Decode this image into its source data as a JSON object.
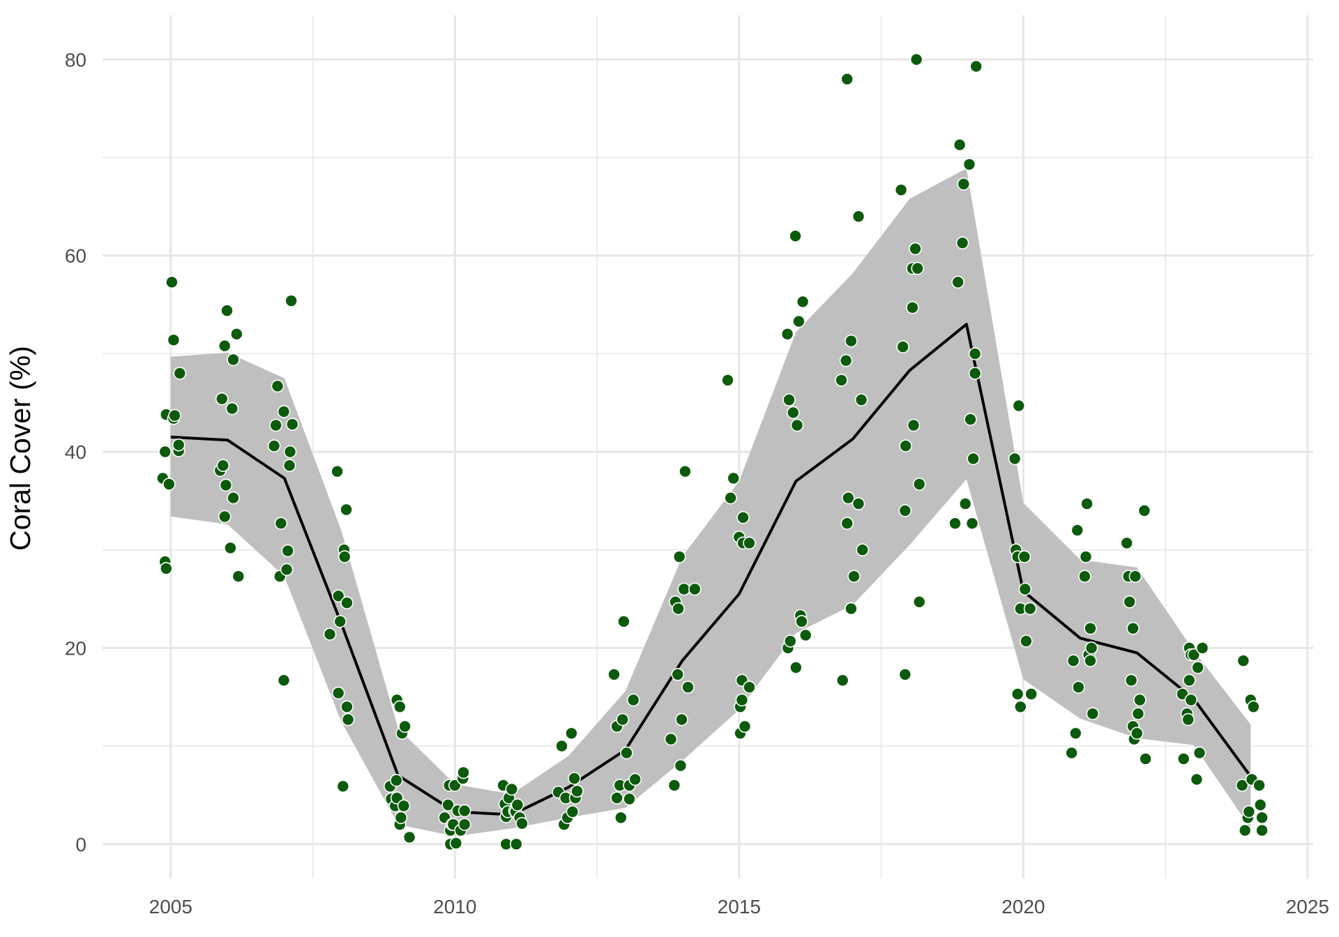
{
  "chart_data": {
    "type": "line",
    "title": "",
    "xlabel": "",
    "ylabel": "Coral Cover (%)",
    "xlim": [
      2003.8,
      2025.1
    ],
    "ylim": [
      -3.5,
      84.5
    ],
    "x_ticks": [
      2005,
      2010,
      2015,
      2020,
      2025
    ],
    "x_tick_labels": [
      "2005",
      "2010",
      "2015",
      "2020",
      "2025"
    ],
    "y_ticks": [
      0,
      20,
      40,
      60,
      80
    ],
    "y_tick_labels": [
      "0",
      "20",
      "40",
      "60",
      "80"
    ],
    "x_minor_ticks": [
      2007.5,
      2012.5,
      2017.5,
      2022.5
    ],
    "y_minor_ticks": [
      10,
      30,
      50,
      70
    ],
    "grid": true,
    "legend": "none",
    "colors": {
      "points": "#0c5a0c",
      "point_edge": "#ffffff",
      "line": "#000000",
      "ribbon": "#bfbfbf",
      "grid": "#e6e6e6"
    },
    "mean_line": {
      "x": [
        2005,
        2006,
        2007,
        2008,
        2009,
        2010,
        2011,
        2012,
        2013,
        2014,
        2015,
        2016,
        2017,
        2018,
        2019,
        2020,
        2021,
        2022,
        2023,
        2024
      ],
      "y": [
        41.5,
        41.2,
        37.3,
        22.5,
        7.0,
        3.3,
        3.0,
        5.8,
        9.6,
        18.7,
        25.5,
        37.0,
        41.3,
        48.3,
        53.0,
        25.8,
        21.0,
        19.5,
        14.8,
        6.9
      ]
    },
    "ribbon": {
      "x": [
        2005,
        2006,
        2007,
        2008,
        2009,
        2010,
        2011,
        2012,
        2013,
        2014,
        2015,
        2016,
        2017,
        2018,
        2019,
        2020,
        2021,
        2022,
        2023,
        2024
      ],
      "upper": [
        49.7,
        50.1,
        47.5,
        32.0,
        11.8,
        6.1,
        5.1,
        9.0,
        15.6,
        29.3,
        37.0,
        52.2,
        58.2,
        65.8,
        68.9,
        34.8,
        29.0,
        28.2,
        19.7,
        12.2
      ],
      "lower": [
        33.4,
        32.6,
        27.3,
        12.5,
        2.0,
        0.8,
        1.6,
        2.7,
        3.7,
        8.5,
        13.7,
        21.5,
        24.4,
        30.5,
        37.2,
        16.8,
        12.8,
        10.8,
        10.1,
        1.6
      ]
    },
    "points": [
      [
        2004.86,
        37.3
      ],
      [
        2004.9,
        40.0
      ],
      [
        2004.92,
        43.8
      ],
      [
        2004.9,
        28.8
      ],
      [
        2004.92,
        28.1
      ],
      [
        2004.97,
        36.7
      ],
      [
        2005.02,
        57.3
      ],
      [
        2005.05,
        43.4
      ],
      [
        2005.07,
        43.7
      ],
      [
        2005.05,
        51.4
      ],
      [
        2005.14,
        40.1
      ],
      [
        2005.14,
        40.7
      ],
      [
        2005.16,
        48.0
      ],
      [
        2005.87,
        38.1
      ],
      [
        2005.9,
        45.4
      ],
      [
        2005.92,
        38.6
      ],
      [
        2005.95,
        50.8
      ],
      [
        2005.95,
        33.4
      ],
      [
        2005.97,
        36.6
      ],
      [
        2005.99,
        54.4
      ],
      [
        2006.05,
        30.2
      ],
      [
        2006.08,
        44.4
      ],
      [
        2006.1,
        35.3
      ],
      [
        2006.1,
        49.4
      ],
      [
        2006.16,
        52.0
      ],
      [
        2006.19,
        27.3
      ],
      [
        2006.82,
        40.6
      ],
      [
        2006.85,
        42.7
      ],
      [
        2006.88,
        46.7
      ],
      [
        2006.92,
        27.3
      ],
      [
        2006.94,
        32.7
      ],
      [
        2006.99,
        44.1
      ],
      [
        2006.99,
        16.7
      ],
      [
        2007.04,
        28.0
      ],
      [
        2007.06,
        29.9
      ],
      [
        2007.09,
        38.6
      ],
      [
        2007.1,
        40.0
      ],
      [
        2007.12,
        55.4
      ],
      [
        2007.14,
        42.8
      ],
      [
        2007.8,
        21.4
      ],
      [
        2007.93,
        38.0
      ],
      [
        2007.95,
        25.3
      ],
      [
        2007.95,
        15.4
      ],
      [
        2007.98,
        22.7
      ],
      [
        2008.03,
        5.9
      ],
      [
        2008.05,
        30.0
      ],
      [
        2008.06,
        29.3
      ],
      [
        2008.09,
        34.1
      ],
      [
        2008.1,
        14.0
      ],
      [
        2008.12,
        12.7
      ],
      [
        2008.1,
        24.6
      ],
      [
        2008.86,
        5.9
      ],
      [
        2008.88,
        4.6
      ],
      [
        2008.95,
        3.9
      ],
      [
        2008.98,
        4.7
      ],
      [
        2008.97,
        6.5
      ],
      [
        2008.98,
        14.7
      ],
      [
        2009.03,
        14.0
      ],
      [
        2009.03,
        2.0
      ],
      [
        2009.05,
        2.7
      ],
      [
        2009.07,
        11.3
      ],
      [
        2009.1,
        3.9
      ],
      [
        2009.12,
        12.0
      ],
      [
        2009.2,
        0.7
      ],
      [
        2009.82,
        2.7
      ],
      [
        2009.88,
        4.0
      ],
      [
        2009.9,
        6.0
      ],
      [
        2009.92,
        1.4
      ],
      [
        2009.92,
        0.0
      ],
      [
        2009.95,
        2.0
      ],
      [
        2009.97,
        2.0
      ],
      [
        2010.0,
        6.0
      ],
      [
        2010.02,
        0.1
      ],
      [
        2010.05,
        3.4
      ],
      [
        2010.1,
        1.4
      ],
      [
        2010.14,
        6.7
      ],
      [
        2010.15,
        7.3
      ],
      [
        2010.17,
        2.0
      ],
      [
        2010.17,
        3.4
      ],
      [
        2010.85,
        6.0
      ],
      [
        2010.88,
        4.1
      ],
      [
        2010.9,
        0.0
      ],
      [
        2010.9,
        2.8
      ],
      [
        2010.93,
        3.3
      ],
      [
        2010.95,
        4.7
      ],
      [
        2011.0,
        5.6
      ],
      [
        2011.05,
        3.4
      ],
      [
        2011.07,
        3.3
      ],
      [
        2011.08,
        0.0
      ],
      [
        2011.1,
        4.0
      ],
      [
        2011.14,
        2.7
      ],
      [
        2011.18,
        2.1
      ],
      [
        2011.82,
        5.3
      ],
      [
        2011.88,
        10.0
      ],
      [
        2011.92,
        2.0
      ],
      [
        2011.95,
        4.7
      ],
      [
        2011.98,
        2.7
      ],
      [
        2012.05,
        11.3
      ],
      [
        2012.07,
        3.3
      ],
      [
        2012.1,
        6.7
      ],
      [
        2012.12,
        4.7
      ],
      [
        2012.15,
        5.4
      ],
      [
        2012.8,
        17.3
      ],
      [
        2012.85,
        4.7
      ],
      [
        2012.85,
        12.0
      ],
      [
        2012.9,
        6.0
      ],
      [
        2012.92,
        2.7
      ],
      [
        2012.95,
        12.7
      ],
      [
        2012.97,
        22.7
      ],
      [
        2013.02,
        9.3
      ],
      [
        2013.07,
        6.0
      ],
      [
        2013.07,
        4.6
      ],
      [
        2013.14,
        14.7
      ],
      [
        2013.17,
        6.6
      ],
      [
        2013.8,
        10.7
      ],
      [
        2013.86,
        6.0
      ],
      [
        2013.88,
        24.7
      ],
      [
        2013.92,
        17.3
      ],
      [
        2013.93,
        24.0
      ],
      [
        2013.95,
        29.3
      ],
      [
        2013.97,
        8.0
      ],
      [
        2013.99,
        12.7
      ],
      [
        2014.03,
        26.0
      ],
      [
        2014.05,
        38.0
      ],
      [
        2014.1,
        16.0
      ],
      [
        2014.22,
        26.0
      ],
      [
        2014.8,
        47.3
      ],
      [
        2014.85,
        35.3
      ],
      [
        2014.9,
        37.3
      ],
      [
        2015.0,
        31.3
      ],
      [
        2015.02,
        14.0
      ],
      [
        2015.02,
        11.3
      ],
      [
        2015.05,
        16.7
      ],
      [
        2015.05,
        14.7
      ],
      [
        2015.07,
        33.3
      ],
      [
        2015.07,
        30.7
      ],
      [
        2015.1,
        12.0
      ],
      [
        2015.18,
        30.7
      ],
      [
        2015.18,
        16.0
      ],
      [
        2015.85,
        52.0
      ],
      [
        2015.86,
        20.0
      ],
      [
        2015.88,
        45.3
      ],
      [
        2015.9,
        20.7
      ],
      [
        2015.95,
        44.0
      ],
      [
        2015.99,
        62.0
      ],
      [
        2016.0,
        18.0
      ],
      [
        2016.02,
        42.7
      ],
      [
        2016.05,
        53.3
      ],
      [
        2016.08,
        23.3
      ],
      [
        2016.1,
        22.7
      ],
      [
        2016.12,
        55.3
      ],
      [
        2016.17,
        21.3
      ],
      [
        2016.8,
        47.3
      ],
      [
        2016.82,
        16.7
      ],
      [
        2016.88,
        49.3
      ],
      [
        2016.9,
        32.7
      ],
      [
        2016.9,
        78.0
      ],
      [
        2016.92,
        35.3
      ],
      [
        2016.97,
        24.0
      ],
      [
        2016.97,
        51.3
      ],
      [
        2017.02,
        27.3
      ],
      [
        2017.1,
        64.0
      ],
      [
        2017.1,
        34.7
      ],
      [
        2017.15,
        45.3
      ],
      [
        2017.17,
        30.0
      ],
      [
        2017.85,
        66.7
      ],
      [
        2017.88,
        50.7
      ],
      [
        2017.92,
        17.3
      ],
      [
        2017.92,
        34.0
      ],
      [
        2017.93,
        40.6
      ],
      [
        2018.05,
        54.7
      ],
      [
        2018.05,
        58.7
      ],
      [
        2018.07,
        42.7
      ],
      [
        2018.1,
        60.7
      ],
      [
        2018.14,
        58.7
      ],
      [
        2018.17,
        24.7
      ],
      [
        2018.17,
        36.7
      ],
      [
        2018.12,
        80.0
      ],
      [
        2018.8,
        32.7
      ],
      [
        2018.85,
        57.3
      ],
      [
        2018.88,
        71.3
      ],
      [
        2018.93,
        61.3
      ],
      [
        2018.95,
        67.3
      ],
      [
        2018.98,
        34.7
      ],
      [
        2019.05,
        69.3
      ],
      [
        2019.07,
        43.3
      ],
      [
        2019.1,
        32.7
      ],
      [
        2019.12,
        39.3
      ],
      [
        2019.15,
        48.0
      ],
      [
        2019.15,
        50.0
      ],
      [
        2019.17,
        79.3
      ],
      [
        2019.85,
        39.3
      ],
      [
        2019.87,
        30.0
      ],
      [
        2019.9,
        15.3
      ],
      [
        2019.9,
        29.3
      ],
      [
        2019.92,
        44.7
      ],
      [
        2019.95,
        24.0
      ],
      [
        2019.95,
        14.0
      ],
      [
        2020.02,
        29.3
      ],
      [
        2020.03,
        26.0
      ],
      [
        2020.05,
        20.7
      ],
      [
        2020.12,
        24.0
      ],
      [
        2020.14,
        15.3
      ],
      [
        2020.85,
        9.3
      ],
      [
        2020.88,
        18.7
      ],
      [
        2020.92,
        11.3
      ],
      [
        2020.95,
        32.0
      ],
      [
        2020.97,
        16.0
      ],
      [
        2021.08,
        27.3
      ],
      [
        2021.1,
        29.3
      ],
      [
        2021.12,
        34.7
      ],
      [
        2021.15,
        19.3
      ],
      [
        2021.18,
        22.0
      ],
      [
        2021.18,
        18.7
      ],
      [
        2021.2,
        20.0
      ],
      [
        2021.22,
        13.3
      ],
      [
        2021.82,
        30.7
      ],
      [
        2021.85,
        27.3
      ],
      [
        2021.87,
        24.7
      ],
      [
        2021.9,
        16.7
      ],
      [
        2021.93,
        12.0
      ],
      [
        2021.93,
        22.0
      ],
      [
        2021.95,
        10.7
      ],
      [
        2021.97,
        27.3
      ],
      [
        2022.0,
        11.3
      ],
      [
        2022.02,
        13.3
      ],
      [
        2022.05,
        14.7
      ],
      [
        2022.13,
        34.0
      ],
      [
        2022.15,
        8.7
      ],
      [
        2022.8,
        15.3
      ],
      [
        2022.82,
        8.7
      ],
      [
        2022.88,
        13.3
      ],
      [
        2022.9,
        12.7
      ],
      [
        2022.92,
        16.7
      ],
      [
        2022.92,
        20.0
      ],
      [
        2022.95,
        19.3
      ],
      [
        2022.95,
        14.7
      ],
      [
        2023.0,
        19.3
      ],
      [
        2023.05,
        6.6
      ],
      [
        2023.07,
        18.0
      ],
      [
        2023.1,
        9.3
      ],
      [
        2023.15,
        20.0
      ],
      [
        2023.85,
        6.0
      ],
      [
        2023.87,
        18.7
      ],
      [
        2023.9,
        1.4
      ],
      [
        2023.95,
        2.7
      ],
      [
        2023.97,
        3.3
      ],
      [
        2024.0,
        14.7
      ],
      [
        2024.02,
        6.6
      ],
      [
        2024.05,
        14.0
      ],
      [
        2024.15,
        6.0
      ],
      [
        2024.17,
        4.0
      ],
      [
        2024.2,
        2.7
      ],
      [
        2024.2,
        1.4
      ]
    ]
  }
}
